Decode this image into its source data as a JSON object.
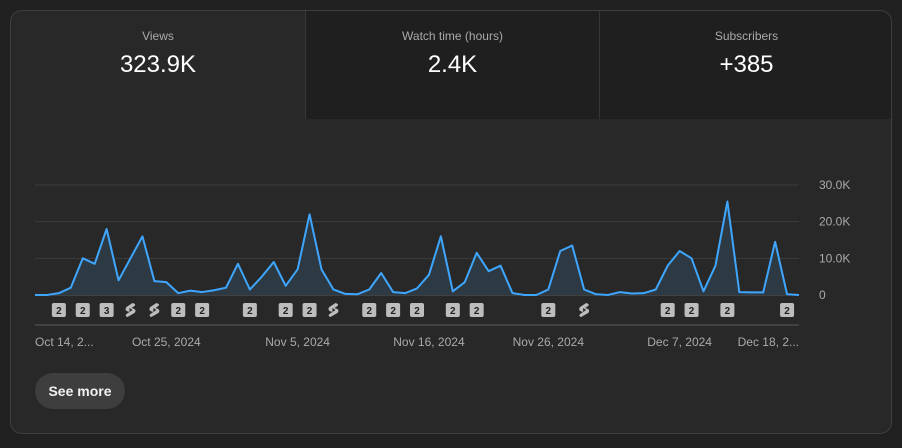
{
  "metrics": [
    {
      "label": "Views",
      "value": "323.9K"
    },
    {
      "label": "Watch time (hours)",
      "value": "2.4K"
    },
    {
      "label": "Subscribers",
      "value": "+385"
    }
  ],
  "see_more_label": "See more",
  "chart_data": {
    "type": "area",
    "series_color": "#3ea6ff",
    "fill_color": "#2d3a43",
    "ylim": [
      0,
      30000
    ],
    "y_ticks": [
      {
        "value": 0,
        "label": "0"
      },
      {
        "value": 10000,
        "label": "10.0K"
      },
      {
        "value": 20000,
        "label": "20.0K"
      },
      {
        "value": 30000,
        "label": "30.0K"
      }
    ],
    "x_ticks": [
      {
        "index": 0,
        "label": "Oct 14, 2..."
      },
      {
        "index": 11,
        "label": "Oct 25, 2024"
      },
      {
        "index": 22,
        "label": "Nov 5, 2024"
      },
      {
        "index": 33,
        "label": "Nov 16, 2024"
      },
      {
        "index": 43,
        "label": "Nov 26, 2024"
      },
      {
        "index": 54,
        "label": "Dec 7, 2024"
      },
      {
        "index": 65,
        "label": "Dec 18, 2..."
      }
    ],
    "values": [
      0,
      0,
      500,
      2000,
      10000,
      8500,
      18000,
      4000,
      10000,
      16000,
      3800,
      3500,
      500,
      1200,
      800,
      1300,
      2000,
      8500,
      1500,
      5000,
      9000,
      2500,
      7000,
      22000,
      7000,
      1500,
      300,
      200,
      1500,
      6000,
      800,
      500,
      1800,
      5500,
      16000,
      1000,
      3500,
      11500,
      6500,
      8000,
      500,
      0,
      0,
      1500,
      12000,
      13500,
      1500,
      200,
      0,
      800,
      400,
      500,
      1500,
      8000,
      12000,
      10000,
      1000,
      8000,
      25500,
      800,
      700,
      700,
      14500,
      200,
      0
    ],
    "markers": [
      {
        "index": 2,
        "label": "2",
        "kind": "number"
      },
      {
        "index": 4,
        "label": "2",
        "kind": "number"
      },
      {
        "index": 6,
        "label": "3",
        "kind": "number"
      },
      {
        "index": 8,
        "label": "",
        "kind": "shorts"
      },
      {
        "index": 10,
        "label": "",
        "kind": "shorts"
      },
      {
        "index": 12,
        "label": "2",
        "kind": "number"
      },
      {
        "index": 14,
        "label": "2",
        "kind": "number"
      },
      {
        "index": 18,
        "label": "2",
        "kind": "number"
      },
      {
        "index": 21,
        "label": "2",
        "kind": "number"
      },
      {
        "index": 23,
        "label": "2",
        "kind": "number"
      },
      {
        "index": 25,
        "label": "",
        "kind": "shorts"
      },
      {
        "index": 28,
        "label": "2",
        "kind": "number"
      },
      {
        "index": 30,
        "label": "2",
        "kind": "number"
      },
      {
        "index": 32,
        "label": "2",
        "kind": "number"
      },
      {
        "index": 35,
        "label": "2",
        "kind": "number"
      },
      {
        "index": 37,
        "label": "2",
        "kind": "number"
      },
      {
        "index": 43,
        "label": "2",
        "kind": "number"
      },
      {
        "index": 46,
        "label": "",
        "kind": "shorts"
      },
      {
        "index": 53,
        "label": "2",
        "kind": "number"
      },
      {
        "index": 55,
        "label": "2",
        "kind": "number"
      },
      {
        "index": 58,
        "label": "2",
        "kind": "number"
      },
      {
        "index": 63,
        "label": "2",
        "kind": "number"
      }
    ]
  }
}
